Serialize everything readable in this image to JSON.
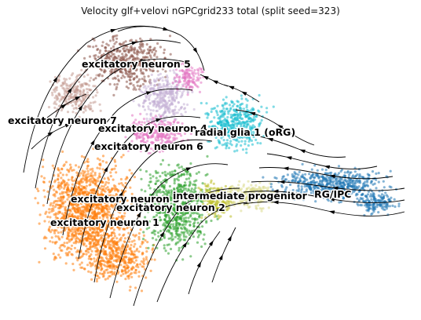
{
  "figure": {
    "title": "Velocity glf+velovi nGPCgrid233 total (split seed=323)"
  },
  "clusters": [
    {
      "id": "en5",
      "label": "excitatory neuron 5",
      "color": "#8c564b"
    },
    {
      "id": "en7",
      "label": "excitatory neuron 7",
      "color": "#c49c94"
    },
    {
      "id": "en4",
      "label": "excitatory neuron 4",
      "color": "#c5b0d5"
    },
    {
      "id": "en6",
      "label": "excitatory neuron 6",
      "color": "#e377c2"
    },
    {
      "id": "rg1",
      "label": "radial glia 1 (oRG)",
      "color": "#17becf"
    },
    {
      "id": "en3",
      "label": "excitatory neuron 3",
      "color": "#bcbd22"
    },
    {
      "id": "ipc",
      "label": "intermediate progenitor",
      "color": "#dbdb8d"
    },
    {
      "id": "rgipc",
      "label": "RG/IPC",
      "color": "#1f77b4"
    },
    {
      "id": "en2",
      "label": "excitatory neuron 2",
      "color": "#2ca02c"
    },
    {
      "id": "en1",
      "label": "excitatory neuron 1",
      "color": "#ff7f0e"
    }
  ]
}
